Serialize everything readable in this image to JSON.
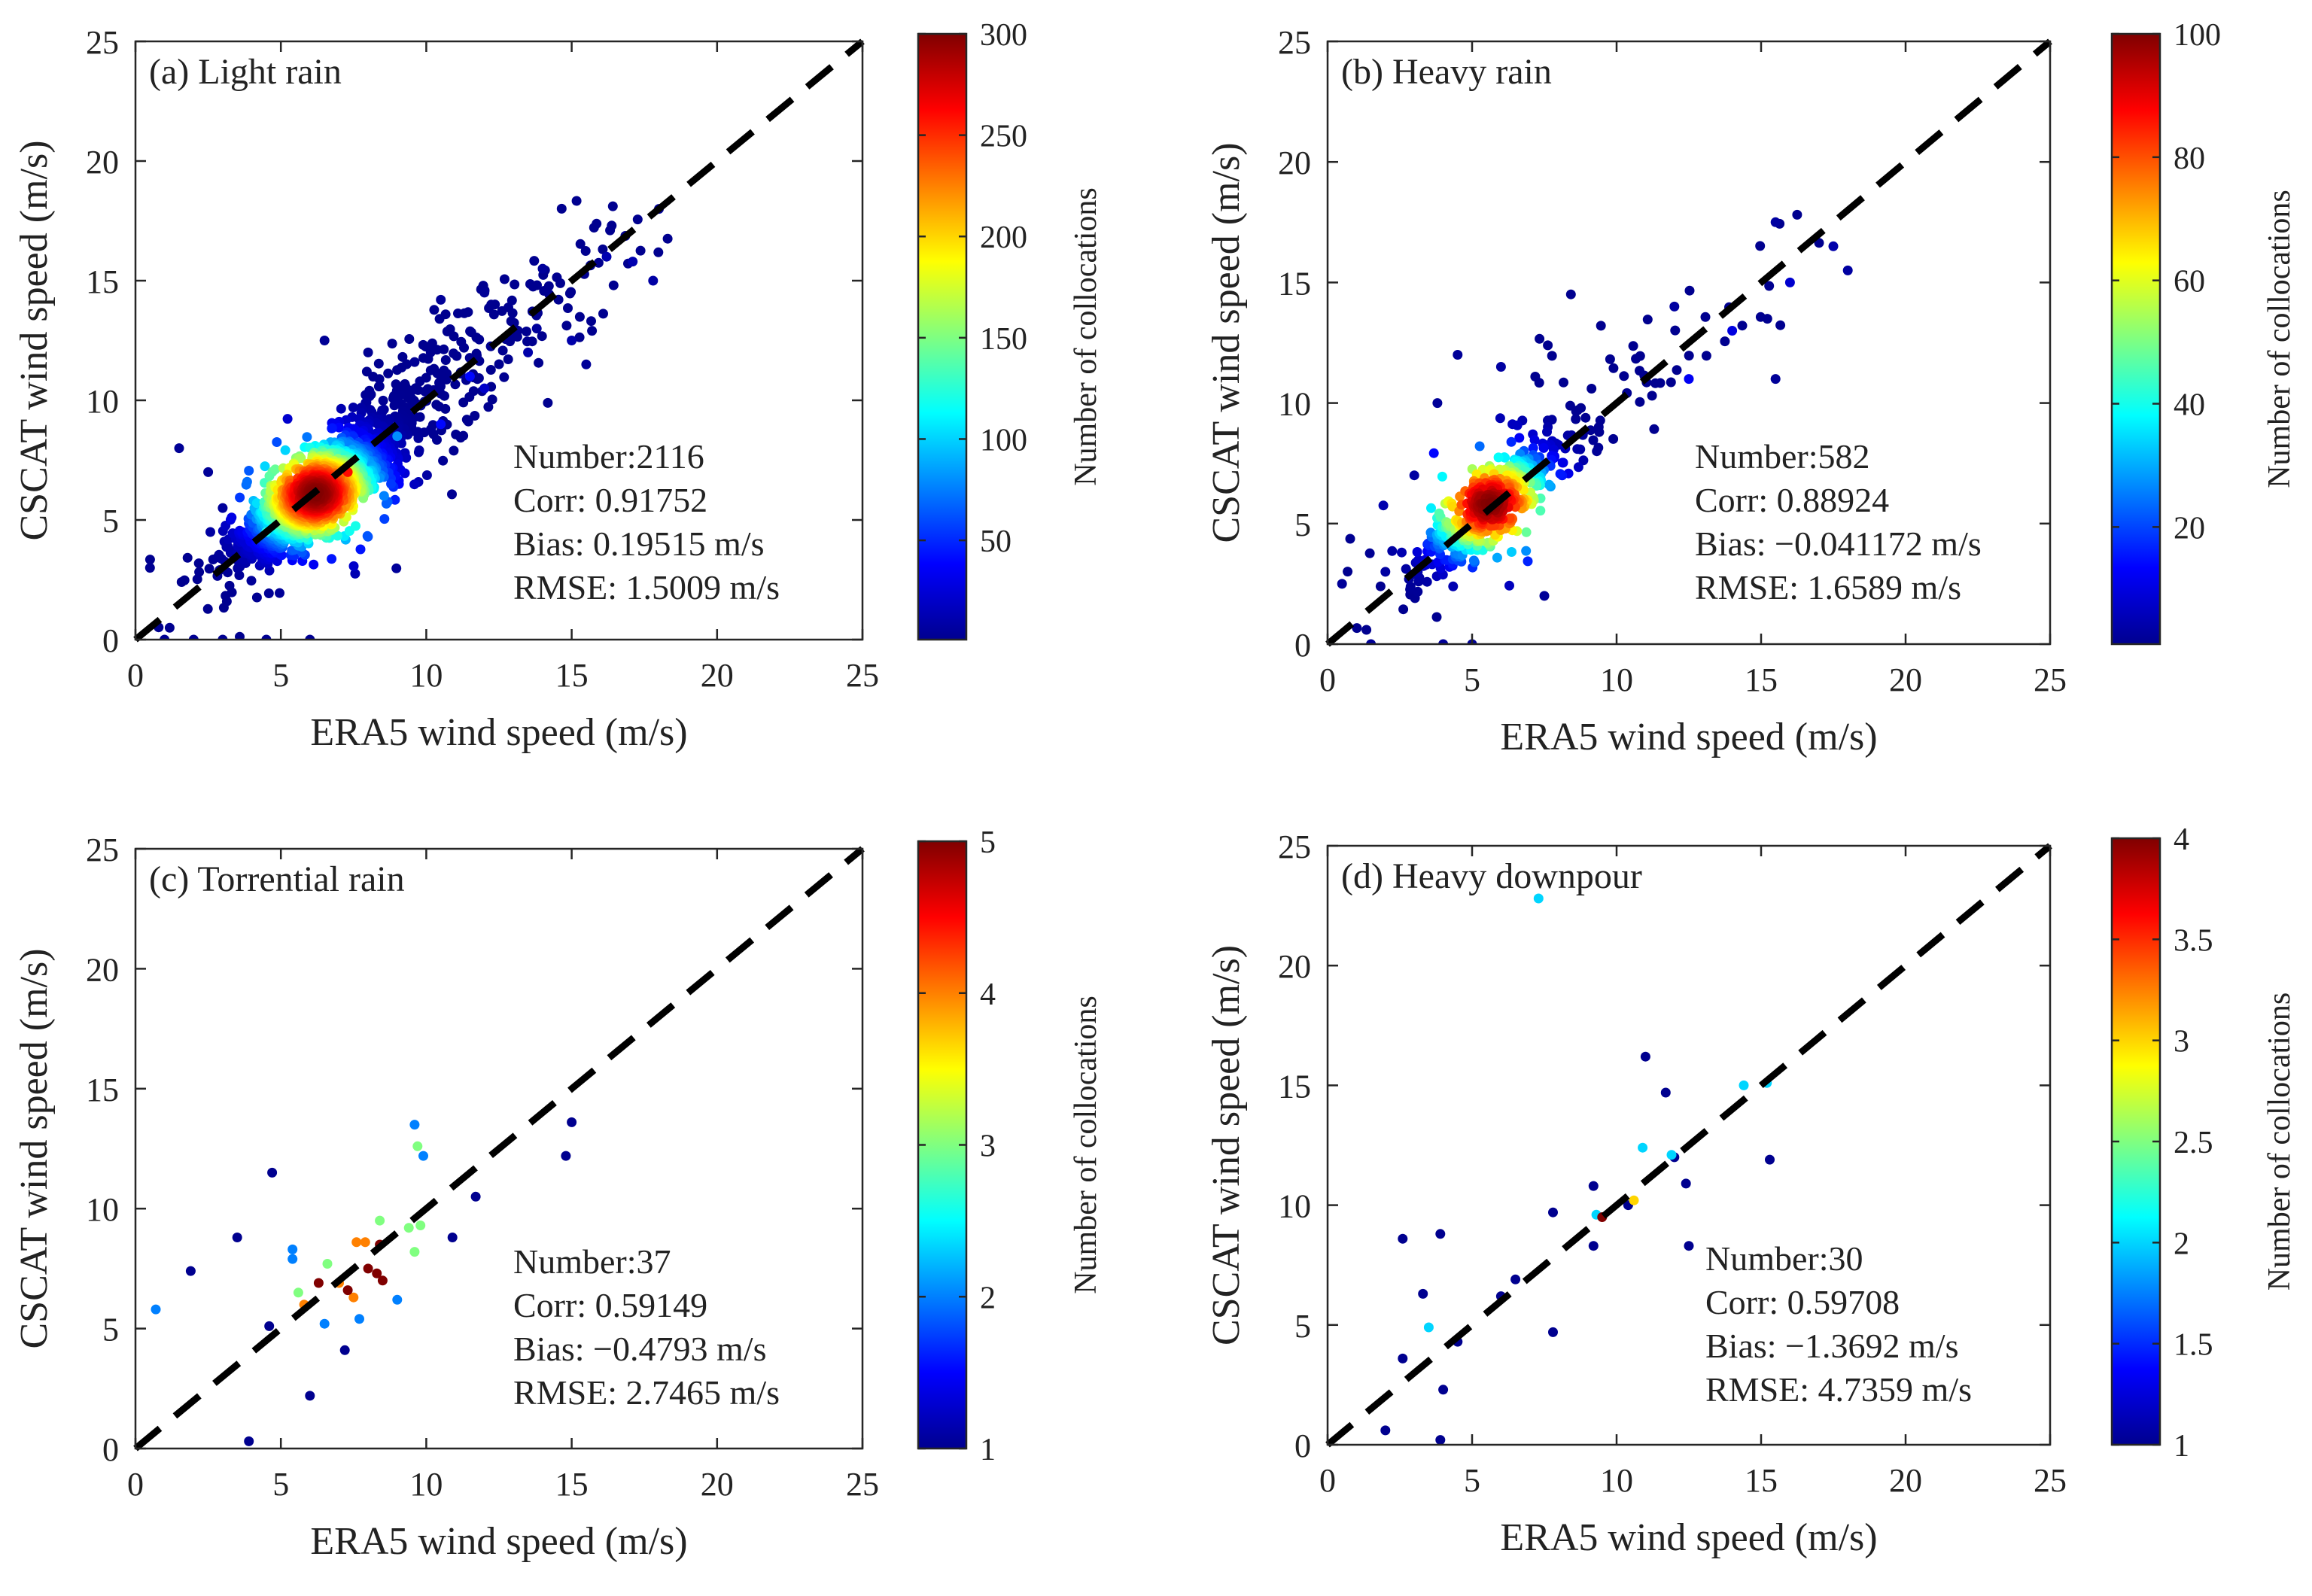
{
  "figure": {
    "colormap": [
      "#00008f",
      "#0000ff",
      "#0080ff",
      "#00ffff",
      "#80ff80",
      "#ffff00",
      "#ff8000",
      "#ff0000",
      "#800000"
    ]
  },
  "chart_data": [
    {
      "type": "scatter",
      "panel": "(a) Light rain",
      "xlabel": "ERA5 wind speed (m/s)",
      "ylabel": "CSCAT wind speed (m/s)",
      "xlim": [
        0,
        25
      ],
      "ylim": [
        0,
        25
      ],
      "xticks": [
        "0",
        "5",
        "10",
        "15",
        "20",
        "25"
      ],
      "yticks": [
        "0",
        "5",
        "10",
        "15",
        "20",
        "25"
      ],
      "colorbar": {
        "label": "Number of collocations",
        "range": [
          1,
          300
        ],
        "ticks": [
          "50",
          "100",
          "150",
          "200",
          "250",
          "300"
        ],
        "tick_values": [
          50,
          100,
          150,
          200,
          250,
          300
        ]
      },
      "reference_line": "y = x",
      "stats": {
        "number": "Number:2116",
        "corr": "Corr: 0.91752",
        "bias": "Bias: 0.19515 m/s",
        "rmse": "RMSE: 1.5009 m/s"
      },
      "density": {
        "n": 2116,
        "peak_x": 6.2,
        "peak_y": 6.1,
        "max_count": 300
      },
      "points": [
        [
          8.0,
          8.5,
          3
        ],
        [
          9.6,
          11.6,
          3
        ],
        [
          13.8,
          13.0,
          5
        ],
        [
          16.2,
          16.0,
          12
        ],
        [
          17.1,
          15.8,
          12
        ],
        [
          15.0,
          12.5,
          10
        ],
        [
          11.5,
          11.0,
          40
        ],
        [
          6.5,
          12.5,
          3
        ],
        [
          8.0,
          12.0,
          2
        ],
        [
          10.5,
          14.2,
          4
        ],
        [
          12.0,
          14.5,
          3
        ],
        [
          14.0,
          15.5,
          5
        ],
        [
          15.5,
          11.5,
          4
        ],
        [
          18.0,
          18.0,
          5
        ],
        [
          17.8,
          15.0,
          8
        ],
        [
          3.0,
          0.0,
          2
        ],
        [
          2.0,
          0.0,
          2
        ],
        [
          1.0,
          0.0,
          2
        ],
        [
          4.5,
          0.0,
          2
        ],
        [
          6.0,
          0.0,
          2
        ],
        [
          0.5,
          3.0,
          2
        ],
        [
          1.5,
          8.0,
          3
        ],
        [
          2.5,
          7.0,
          4
        ],
        [
          3.0,
          5.5,
          5
        ],
        [
          6.2,
          6.0,
          300
        ],
        [
          7.3,
          7.0,
          260
        ],
        [
          5.4,
          5.3,
          220
        ],
        [
          4.5,
          4.5,
          120
        ],
        [
          9.0,
          8.5,
          80
        ],
        [
          10.5,
          9.0,
          40
        ],
        [
          12.0,
          10.5,
          20
        ],
        [
          13.5,
          12.0,
          10
        ]
      ]
    },
    {
      "type": "scatter",
      "panel": "(b) Heavy rain",
      "xlabel": "ERA5 wind speed (m/s)",
      "ylabel": "CSCAT wind speed (m/s)",
      "xlim": [
        0,
        25
      ],
      "ylim": [
        0,
        25
      ],
      "xticks": [
        "0",
        "5",
        "10",
        "15",
        "20",
        "25"
      ],
      "yticks": [
        "0",
        "5",
        "10",
        "15",
        "20",
        "25"
      ],
      "colorbar": {
        "label": "Number of collocations",
        "range": [
          1,
          100
        ],
        "ticks": [
          "20",
          "40",
          "60",
          "80",
          "100"
        ],
        "tick_values": [
          20,
          40,
          60,
          80,
          100
        ]
      },
      "reference_line": "y = x",
      "stats": {
        "number": "Number:582",
        "corr": "Corr: 0.88924",
        "bias": "Bias: −0.041172 m/s",
        "rmse": "RMSE: 1.6589 m/s"
      },
      "density": {
        "n": 582,
        "peak_x": 5.6,
        "peak_y": 5.8,
        "max_count": 100
      },
      "points": [
        [
          15.5,
          17.5,
          3
        ],
        [
          18.0,
          15.5,
          3
        ],
        [
          17.5,
          16.5,
          4
        ],
        [
          12.0,
          14.0,
          3
        ],
        [
          4.5,
          12.0,
          2
        ],
        [
          3.8,
          10.0,
          2
        ],
        [
          6.0,
          11.5,
          3
        ],
        [
          15.5,
          11.0,
          2
        ],
        [
          0.5,
          2.5,
          2
        ],
        [
          1.5,
          0.0,
          2
        ],
        [
          4.0,
          0.0,
          2
        ],
        [
          5.0,
          0.0,
          2
        ],
        [
          2.0,
          3.0,
          3
        ],
        [
          3.0,
          7.0,
          3
        ],
        [
          7.5,
          2.0,
          2
        ],
        [
          16.0,
          15.0,
          8
        ],
        [
          14.0,
          13.0,
          10
        ],
        [
          12.5,
          11.0,
          12
        ]
      ]
    },
    {
      "type": "scatter",
      "panel": "(c) Torrential rain",
      "xlabel": "ERA5 wind speed (m/s)",
      "ylabel": "CSCAT wind speed (m/s)",
      "xlim": [
        0,
        25
      ],
      "ylim": [
        0,
        25
      ],
      "xticks": [
        "0",
        "5",
        "10",
        "15",
        "20",
        "25"
      ],
      "yticks": [
        "0",
        "5",
        "10",
        "15",
        "20",
        "25"
      ],
      "colorbar": {
        "label": "Number of collocations",
        "range": [
          1,
          5
        ],
        "ticks": [
          "1",
          "2",
          "3",
          "4",
          "5"
        ],
        "tick_values": [
          1,
          2,
          3,
          4,
          5
        ]
      },
      "reference_line": "y = x",
      "stats": {
        "number": "Number:37",
        "corr": "Corr: 0.59149",
        "bias": "Bias: −0.4793 m/s",
        "rmse": "RMSE: 2.7465 m/s"
      },
      "points": [
        [
          0.7,
          5.8,
          2
        ],
        [
          1.9,
          7.4,
          1
        ],
        [
          3.5,
          8.8,
          1
        ],
        [
          4.7,
          11.5,
          1
        ],
        [
          3.9,
          0.3,
          1
        ],
        [
          4.6,
          5.1,
          1
        ],
        [
          5.4,
          8.3,
          2
        ],
        [
          5.4,
          7.9,
          2
        ],
        [
          5.6,
          6.5,
          3
        ],
        [
          5.8,
          6.0,
          4
        ],
        [
          6.3,
          6.9,
          5
        ],
        [
          6.6,
          7.7,
          3
        ],
        [
          6.5,
          5.2,
          2
        ],
        [
          7.0,
          6.9,
          4
        ],
        [
          7.2,
          4.1,
          1
        ],
        [
          7.3,
          6.6,
          5
        ],
        [
          7.5,
          6.3,
          4
        ],
        [
          7.6,
          8.6,
          4
        ],
        [
          7.7,
          5.4,
          2
        ],
        [
          7.9,
          8.6,
          4
        ],
        [
          8.0,
          7.5,
          5
        ],
        [
          8.3,
          7.3,
          5
        ],
        [
          8.4,
          8.5,
          5
        ],
        [
          8.5,
          7.0,
          5
        ],
        [
          8.4,
          9.5,
          3
        ],
        [
          9.0,
          6.2,
          2
        ],
        [
          9.6,
          13.5,
          2
        ],
        [
          9.6,
          8.2,
          3
        ],
        [
          9.7,
          12.6,
          3
        ],
        [
          9.9,
          12.2,
          2
        ],
        [
          9.8,
          9.3,
          3
        ],
        [
          10.9,
          8.8,
          1
        ],
        [
          11.7,
          10.5,
          1
        ],
        [
          14.8,
          12.2,
          1
        ],
        [
          15.0,
          13.6,
          1
        ],
        [
          6.0,
          2.2,
          1
        ],
        [
          9.4,
          9.2,
          3
        ]
      ]
    },
    {
      "type": "scatter",
      "panel": "(d) Heavy downpour",
      "xlabel": "ERA5 wind speed (m/s)",
      "ylabel": "CSCAT wind speed (m/s)",
      "xlim": [
        0,
        25
      ],
      "ylim": [
        0,
        25
      ],
      "xticks": [
        "0",
        "5",
        "10",
        "15",
        "20",
        "25"
      ],
      "yticks": [
        "0",
        "5",
        "10",
        "15",
        "20",
        "25"
      ],
      "colorbar": {
        "label": "Number of collocations",
        "range": [
          1,
          4
        ],
        "ticks": [
          "1",
          "1.5",
          "2",
          "2.5",
          "3",
          "3.5",
          "4"
        ],
        "tick_values": [
          1,
          1.5,
          2,
          2.5,
          3,
          3.5,
          4
        ]
      },
      "reference_line": "y = x",
      "stats": {
        "number": "Number:30",
        "corr": "Corr: 0.59708",
        "bias": "Bias: −1.3692 m/s",
        "rmse": "RMSE: 4.7359 m/s"
      },
      "points": [
        [
          2.0,
          0.6,
          1
        ],
        [
          2.6,
          3.6,
          1
        ],
        [
          2.6,
          8.6,
          1
        ],
        [
          3.5,
          4.9,
          2
        ],
        [
          3.3,
          6.3,
          1
        ],
        [
          3.9,
          8.8,
          1
        ],
        [
          4.0,
          2.3,
          1
        ],
        [
          3.9,
          0.2,
          1
        ],
        [
          6.5,
          6.9,
          1
        ],
        [
          7.3,
          22.8,
          2
        ],
        [
          7.8,
          9.7,
          1
        ],
        [
          7.8,
          4.7,
          1
        ],
        [
          9.2,
          10.8,
          1
        ],
        [
          9.2,
          8.3,
          1
        ],
        [
          9.3,
          9.6,
          2
        ],
        [
          9.5,
          9.5,
          4
        ],
        [
          10.4,
          10.0,
          1
        ],
        [
          10.6,
          10.2,
          3
        ],
        [
          10.9,
          12.4,
          2
        ],
        [
          11.0,
          16.2,
          1
        ],
        [
          11.7,
          14.7,
          1
        ],
        [
          11.9,
          12.1,
          2
        ],
        [
          12.4,
          10.9,
          1
        ],
        [
          12.5,
          8.3,
          1
        ],
        [
          14.4,
          15.0,
          2
        ],
        [
          15.2,
          15.1,
          2
        ],
        [
          15.3,
          11.9,
          1
        ],
        [
          12.0,
          12.0,
          1
        ],
        [
          6.0,
          6.2,
          1
        ],
        [
          4.5,
          4.3,
          1
        ]
      ]
    }
  ]
}
